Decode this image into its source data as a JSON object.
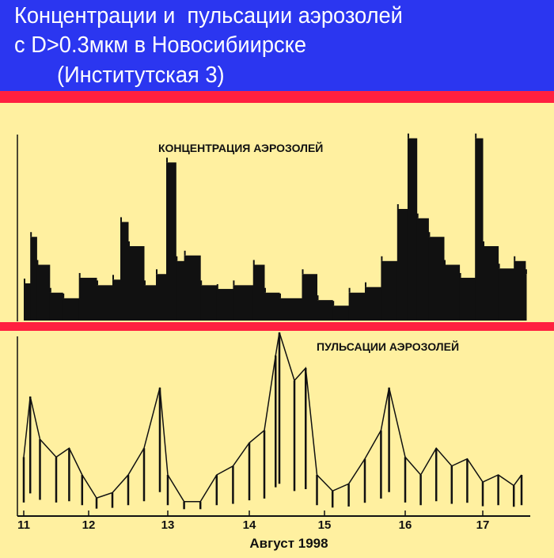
{
  "header": {
    "line1": "Концентрации и  пульсации аэрозолей",
    "line2": "с D>0.3мкм в Новосибиирске",
    "line3": "(Институтская 3)"
  },
  "colors": {
    "header_bg": "#2b36f0",
    "band": "#ff2040",
    "background": "#fff0a0",
    "ink": "#111111"
  },
  "chart_data": [
    {
      "type": "area",
      "title": "КОНЦЕНТРАЦИЯ АЭРОЗОЛЕЙ",
      "xlabel": "Август 1998",
      "ylabel": "",
      "xlim": [
        11,
        17.6
      ],
      "x_ticks": [
        "11",
        "12",
        "13",
        "14",
        "15",
        "16",
        "17"
      ],
      "units_note_y": "relative",
      "x": [
        11.0,
        11.1,
        11.2,
        11.4,
        11.6,
        11.85,
        12.1,
        12.3,
        12.4,
        12.5,
        12.7,
        12.85,
        12.98,
        13.1,
        13.2,
        13.4,
        13.6,
        13.8,
        14.05,
        14.2,
        14.4,
        14.7,
        14.9,
        15.1,
        15.3,
        15.5,
        15.7,
        15.9,
        16.03,
        16.15,
        16.3,
        16.5,
        16.7,
        16.9,
        17.0,
        17.2,
        17.4,
        17.55
      ],
      "y": [
        20,
        45,
        30,
        15,
        12,
        23,
        19,
        22,
        53,
        40,
        19,
        25,
        85,
        32,
        35,
        19,
        17,
        19,
        30,
        15,
        12,
        25,
        11,
        8,
        15,
        18,
        32,
        60,
        98,
        55,
        45,
        30,
        23,
        98,
        40,
        28,
        32,
        25
      ],
      "ylim": [
        0,
        100
      ]
    },
    {
      "type": "line",
      "title": "ПУЛЬСАЦИИ АЭРОЗОЛЕЙ",
      "xlabel": "Август 1998",
      "ylabel": "",
      "xlim": [
        11,
        17.6
      ],
      "x_ticks": [
        "11",
        "12",
        "13",
        "14",
        "15",
        "16",
        "17"
      ],
      "x": [
        11.0,
        11.1,
        11.25,
        11.5,
        11.7,
        11.9,
        12.1,
        12.3,
        12.5,
        12.7,
        12.9,
        13.0,
        13.2,
        13.4,
        13.6,
        13.8,
        14.0,
        14.2,
        14.35,
        14.4,
        14.6,
        14.75,
        14.9,
        15.1,
        15.3,
        15.5,
        15.7,
        15.8,
        16.0,
        16.2,
        16.4,
        16.6,
        16.8,
        17.0,
        17.2,
        17.4,
        17.5
      ],
      "y": [
        30,
        64,
        40,
        30,
        35,
        20,
        7,
        10,
        20,
        35,
        69,
        20,
        5,
        5,
        20,
        25,
        38,
        45,
        87,
        100,
        73,
        80,
        20,
        11,
        15,
        29,
        45,
        69,
        30,
        20,
        35,
        25,
        29,
        16,
        20,
        14,
        20
      ],
      "ylim": [
        0,
        100
      ]
    }
  ]
}
